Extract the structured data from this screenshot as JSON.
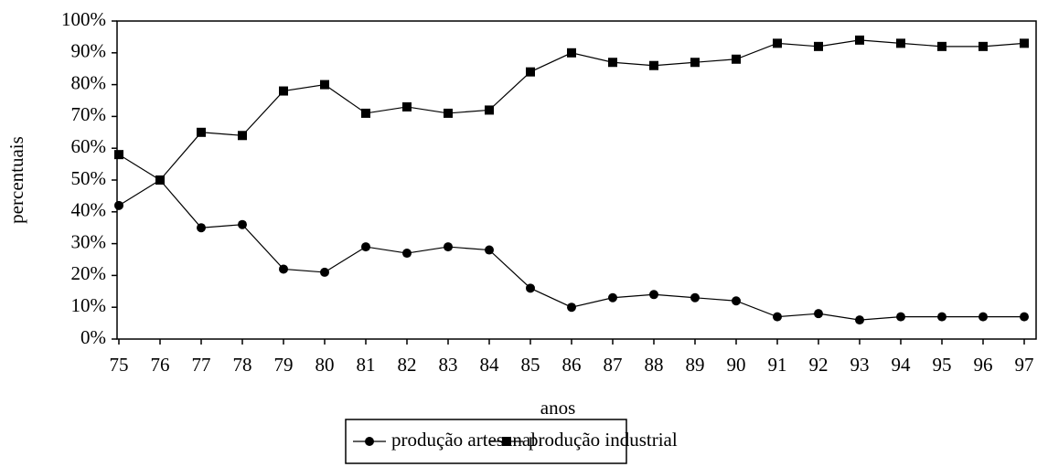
{
  "chart_data": {
    "type": "line",
    "x_label": "anos",
    "y_label": "percentuais",
    "categories": [
      "75",
      "76",
      "77",
      "78",
      "79",
      "80",
      "81",
      "82",
      "83",
      "84",
      "85",
      "86",
      "87",
      "88",
      "89",
      "90",
      "91",
      "92",
      "93",
      "94",
      "95",
      "96",
      "97"
    ],
    "series": [
      {
        "name": "produção artesanal",
        "color": "#000000",
        "marker": "circle",
        "values": [
          42,
          50,
          35,
          36,
          22,
          21,
          29,
          27,
          29,
          28,
          16,
          10,
          13,
          14,
          13,
          12,
          7,
          8,
          6,
          7,
          7,
          7,
          7
        ]
      },
      {
        "name": "produção industrial",
        "color": "#000000",
        "marker": "square",
        "values": [
          58,
          50,
          65,
          64,
          78,
          80,
          71,
          73,
          71,
          72,
          84,
          90,
          87,
          86,
          87,
          88,
          93,
          92,
          94,
          93,
          92,
          92,
          93
        ]
      }
    ],
    "ylim": [
      0,
      100
    ],
    "yticks": [
      {
        "value": 0,
        "label": "0%"
      },
      {
        "value": 10,
        "label": "10%"
      },
      {
        "value": 20,
        "label": "20%"
      },
      {
        "value": 30,
        "label": "30%"
      },
      {
        "value": 40,
        "label": "40%"
      },
      {
        "value": 50,
        "label": "50%"
      },
      {
        "value": 60,
        "label": "60%"
      },
      {
        "value": 70,
        "label": "70%"
      },
      {
        "value": 80,
        "label": "80%"
      },
      {
        "value": 90,
        "label": "90%"
      },
      {
        "value": 100,
        "label": "100%"
      }
    ],
    "grid": false,
    "legend": "bottom"
  }
}
